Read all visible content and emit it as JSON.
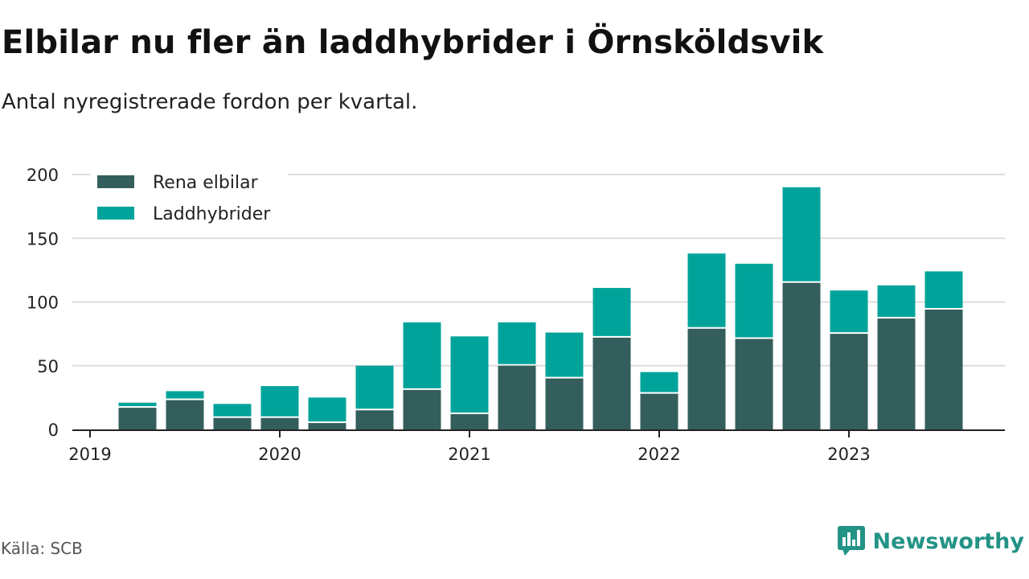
{
  "header": {
    "title": "Elbilar nu fler än laddhybrider i Örnsköldsvik",
    "subtitle": "Antal nyregistrerade fordon per kvartal."
  },
  "footer": {
    "source": "Källa: SCB",
    "brand": "Newsworthy",
    "brand_icon": "newsworthy-logo-icon"
  },
  "colors": {
    "elbilar": "#335e5b",
    "laddhybrider": "#00a39a",
    "grid": "#dddddd",
    "axis": "#222222",
    "brand": "#239386"
  },
  "chart_data": {
    "type": "bar",
    "stacked": true,
    "title": "Elbilar nu fler än laddhybrider i Örnsköldsvik",
    "subtitle": "Antal nyregistrerade fordon per kvartal.",
    "xlabel": "",
    "ylabel": "",
    "ylim": [
      0,
      200
    ],
    "yticks": [
      0,
      50,
      100,
      150,
      200
    ],
    "x_axis_labels": [
      "2019",
      "2020",
      "2021",
      "2022",
      "2023"
    ],
    "x_axis_label_positions": [
      0,
      4,
      8,
      12,
      16
    ],
    "x_range": [
      0,
      19.25
    ],
    "bar_positions": [
      1,
      2,
      3,
      4,
      5,
      6,
      7,
      8,
      9,
      10,
      11,
      12,
      13,
      14,
      15,
      16,
      17,
      18
    ],
    "categories": [
      "2019 Q2",
      "2019 Q3",
      "2019 Q4",
      "2020 Q1",
      "2020 Q2",
      "2020 Q3",
      "2020 Q4",
      "2021 Q1",
      "2021 Q2",
      "2021 Q3",
      "2021 Q4",
      "2022 Q1",
      "2022 Q2",
      "2022 Q3",
      "2022 Q4",
      "2023 Q1",
      "2023 Q2",
      "2023 Q3"
    ],
    "series": [
      {
        "name": "Rena elbilar",
        "color": "#335e5b",
        "values": [
          17,
          23,
          9,
          9,
          5,
          15,
          31,
          12,
          50,
          40,
          72,
          28,
          79,
          71,
          115,
          75,
          87,
          94
        ]
      },
      {
        "name": "Laddhybrider",
        "color": "#00a39a",
        "values": [
          4,
          7,
          11,
          25,
          20,
          35,
          53,
          61,
          34,
          36,
          39,
          17,
          59,
          59,
          75,
          34,
          26,
          30
        ]
      }
    ],
    "legend": {
      "position": "top-left",
      "entries": [
        "Rena elbilar",
        "Laddhybrider"
      ]
    },
    "grid": true
  }
}
